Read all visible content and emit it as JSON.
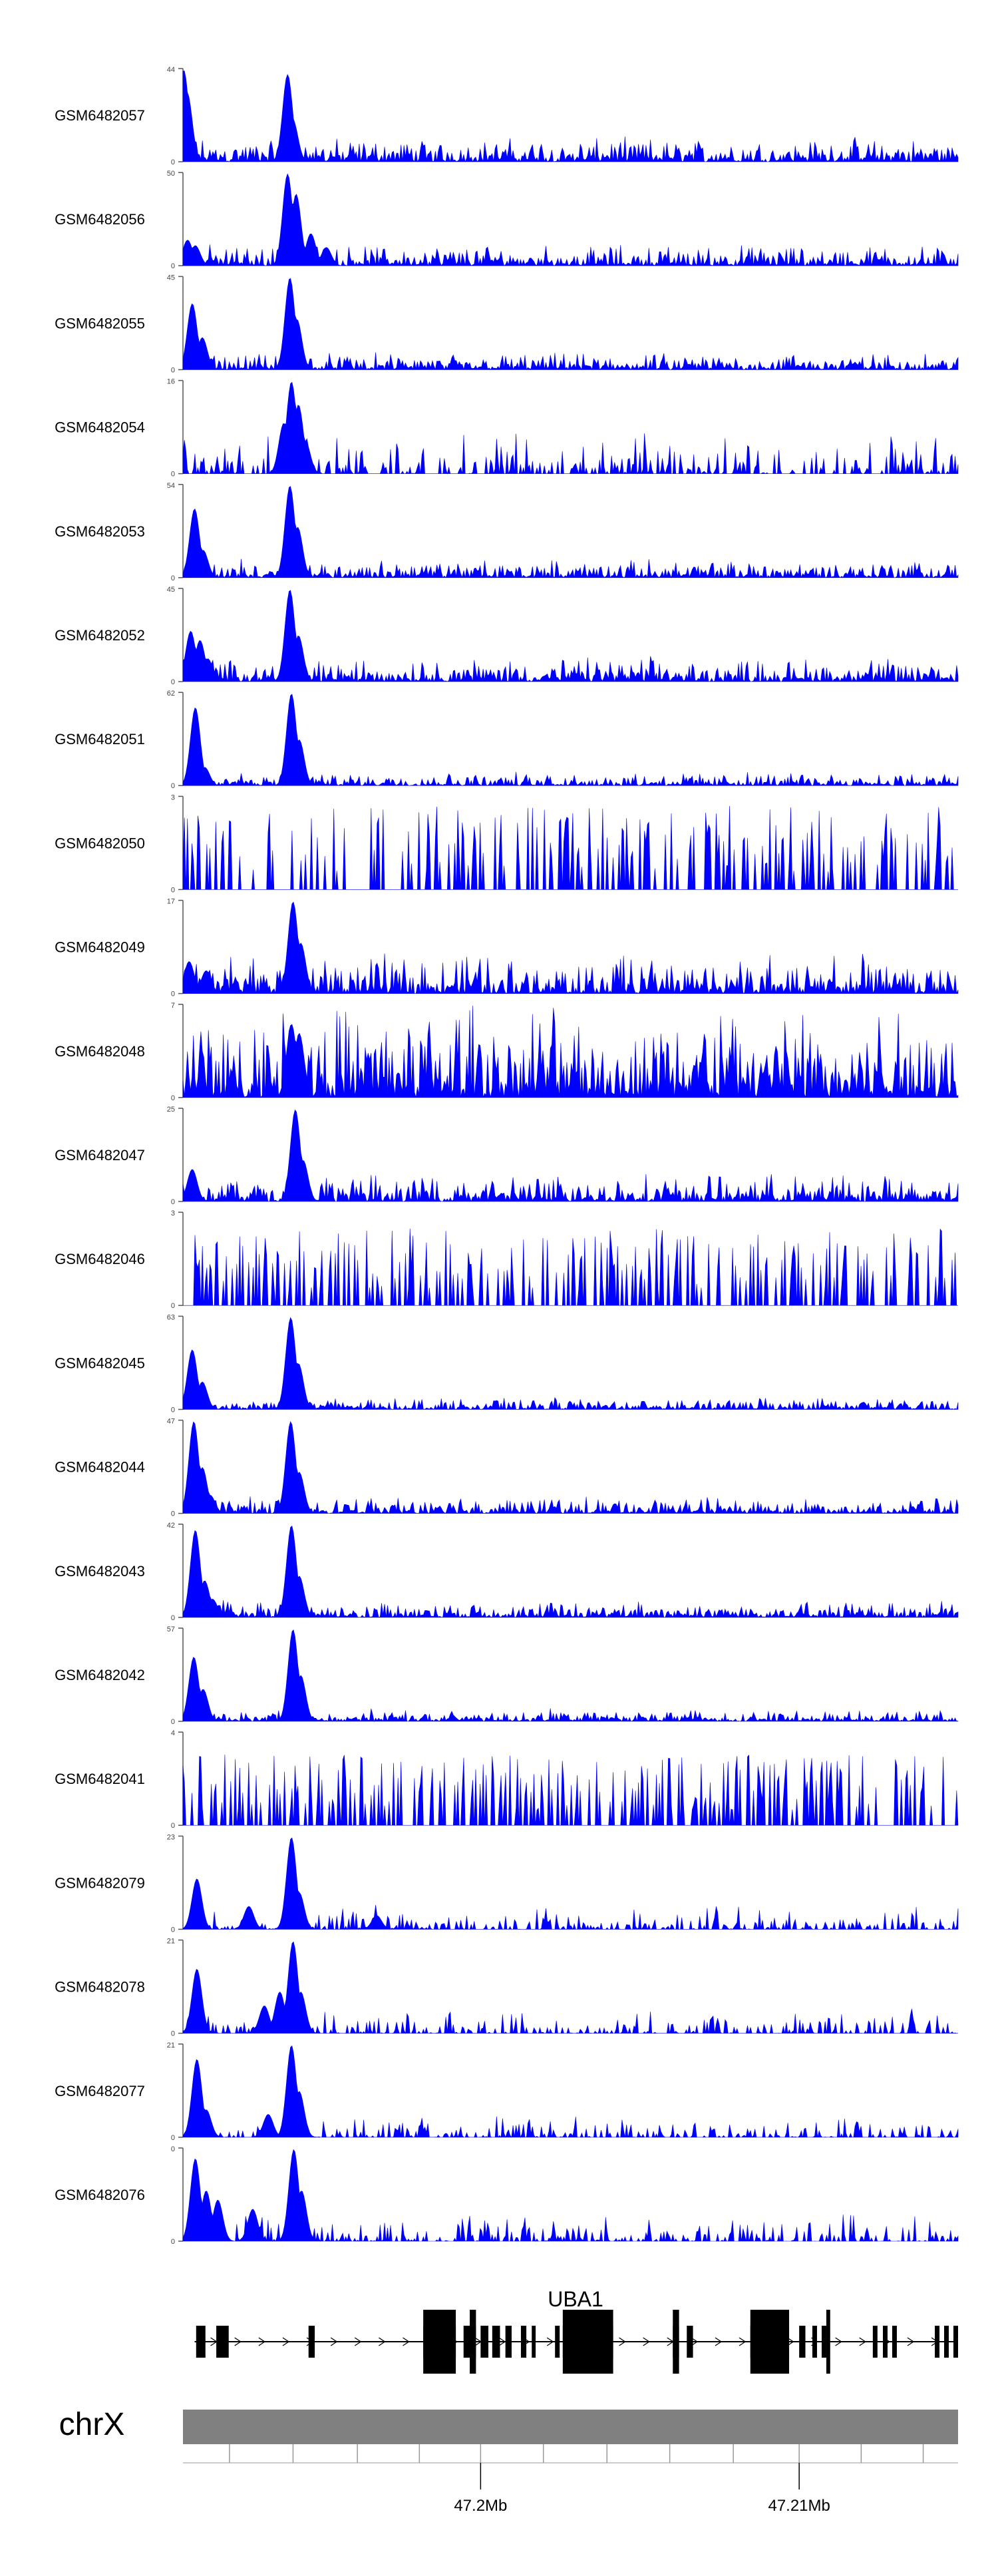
{
  "chart_data": {
    "type": "area",
    "title": "",
    "track_color": "#0000ff",
    "series": [
      {
        "name": "GSM6482057",
        "ymax": 44,
        "peaks": [
          [
            0.1,
            1.0
          ],
          [
            0.55,
            0.75
          ],
          [
            0.85,
            0.35
          ],
          [
            1.1,
            0.12
          ],
          [
            13.5,
            0.95
          ],
          [
            14.2,
            0.45
          ]
        ],
        "noise": 0.16,
        "sparse": 0
      },
      {
        "name": "GSM6482056",
        "ymax": 50,
        "peaks": [
          [
            0.6,
            0.28
          ],
          [
            1.6,
            0.22
          ],
          [
            13.5,
            1.0
          ],
          [
            14.6,
            0.78
          ],
          [
            16.5,
            0.35
          ],
          [
            18.5,
            0.2
          ]
        ],
        "noise": 0.14,
        "sparse": 0
      },
      {
        "name": "GSM6482055",
        "ymax": 45,
        "peaks": [
          [
            1.2,
            0.72
          ],
          [
            2.5,
            0.35
          ],
          [
            13.8,
            1.0
          ],
          [
            14.7,
            0.55
          ]
        ],
        "noise": 0.11,
        "sparse": 0
      },
      {
        "name": "GSM6482054",
        "ymax": 16,
        "peaks": [
          [
            13.0,
            0.55
          ],
          [
            14.0,
            1.0
          ],
          [
            14.9,
            0.75
          ],
          [
            15.8,
            0.35
          ]
        ],
        "noise": 0.3,
        "sparse": 1
      },
      {
        "name": "GSM6482053",
        "ymax": 54,
        "peaks": [
          [
            1.5,
            0.75
          ],
          [
            2.6,
            0.3
          ],
          [
            13.8,
            1.0
          ],
          [
            14.8,
            0.55
          ]
        ],
        "noise": 0.12,
        "sparse": 0
      },
      {
        "name": "GSM6482052",
        "ymax": 45,
        "peaks": [
          [
            1.0,
            0.55
          ],
          [
            2.2,
            0.45
          ],
          [
            3.2,
            0.25
          ],
          [
            13.8,
            1.0
          ],
          [
            14.9,
            0.5
          ]
        ],
        "noise": 0.16,
        "sparse": 0
      },
      {
        "name": "GSM6482051",
        "ymax": 62,
        "peaks": [
          [
            1.6,
            0.85
          ],
          [
            2.8,
            0.2
          ],
          [
            14.0,
            1.0
          ],
          [
            15.0,
            0.5
          ]
        ],
        "noise": 0.09,
        "sparse": 0
      },
      {
        "name": "GSM6482050",
        "ymax": 3,
        "peaks": [],
        "noise": 0.65,
        "sparse": 2
      },
      {
        "name": "GSM6482049",
        "ymax": 17,
        "peaks": [
          [
            0.8,
            0.35
          ],
          [
            3.0,
            0.25
          ],
          [
            14.2,
            1.0
          ],
          [
            15.2,
            0.55
          ]
        ],
        "noise": 0.26,
        "sparse": 0
      },
      {
        "name": "GSM6482048",
        "ymax": 7,
        "peaks": [
          [
            14.0,
            0.8
          ],
          [
            15.0,
            0.7
          ]
        ],
        "noise": 0.62,
        "sparse": 0
      },
      {
        "name": "GSM6482047",
        "ymax": 25,
        "peaks": [
          [
            1.2,
            0.35
          ],
          [
            14.5,
            1.0
          ],
          [
            15.5,
            0.45
          ]
        ],
        "noise": 0.18,
        "sparse": 0
      },
      {
        "name": "GSM6482046",
        "ymax": 3,
        "peaks": [],
        "noise": 0.6,
        "sparse": 2
      },
      {
        "name": "GSM6482045",
        "ymax": 63,
        "peaks": [
          [
            1.2,
            0.65
          ],
          [
            2.5,
            0.3
          ],
          [
            13.9,
            1.0
          ],
          [
            14.9,
            0.5
          ]
        ],
        "noise": 0.08,
        "sparse": 0
      },
      {
        "name": "GSM6482044",
        "ymax": 47,
        "peaks": [
          [
            1.4,
            1.0
          ],
          [
            2.5,
            0.5
          ],
          [
            3.5,
            0.2
          ],
          [
            13.9,
            1.0
          ],
          [
            15.0,
            0.45
          ]
        ],
        "noise": 0.11,
        "sparse": 0
      },
      {
        "name": "GSM6482043",
        "ymax": 42,
        "peaks": [
          [
            1.6,
            0.95
          ],
          [
            2.8,
            0.4
          ],
          [
            3.8,
            0.2
          ],
          [
            14.0,
            1.0
          ],
          [
            15.0,
            0.45
          ]
        ],
        "noise": 0.11,
        "sparse": 0
      },
      {
        "name": "GSM6482042",
        "ymax": 57,
        "peaks": [
          [
            1.4,
            0.7
          ],
          [
            2.6,
            0.35
          ],
          [
            14.2,
            1.0
          ],
          [
            15.2,
            0.5
          ]
        ],
        "noise": 0.08,
        "sparse": 0
      },
      {
        "name": "GSM6482041",
        "ymax": 4,
        "peaks": [],
        "noise": 0.55,
        "sparse": 2
      },
      {
        "name": "GSM6482079",
        "ymax": 23,
        "peaks": [
          [
            1.8,
            0.55
          ],
          [
            8.5,
            0.25
          ],
          [
            14.0,
            1.0
          ],
          [
            15.0,
            0.4
          ],
          [
            25,
            0.15
          ]
        ],
        "noise": 0.17,
        "sparse": 1
      },
      {
        "name": "GSM6482078",
        "ymax": 21,
        "peaks": [
          [
            1.8,
            0.7
          ],
          [
            10.5,
            0.3
          ],
          [
            12.5,
            0.45
          ],
          [
            14.2,
            1.0
          ],
          [
            15.2,
            0.45
          ]
        ],
        "noise": 0.17,
        "sparse": 1
      },
      {
        "name": "GSM6482077",
        "ymax": 21,
        "peaks": [
          [
            1.8,
            0.85
          ],
          [
            3.0,
            0.3
          ],
          [
            11.0,
            0.25
          ],
          [
            14.0,
            1.0
          ],
          [
            15.0,
            0.5
          ]
        ],
        "noise": 0.15,
        "sparse": 1
      },
      {
        "name": "GSM6482076",
        "ymax": 0,
        "peaks": [
          [
            1.6,
            0.9
          ],
          [
            3.0,
            0.55
          ],
          [
            4.5,
            0.45
          ],
          [
            9.0,
            0.35
          ],
          [
            14.3,
            1.0
          ],
          [
            15.3,
            0.55
          ]
        ],
        "noise": 0.2,
        "sparse": 1
      }
    ],
    "gene": {
      "name": "UBA1",
      "exons": [
        [
          1.7,
          2.9
        ],
        [
          4.3,
          5.9
        ],
        [
          16.2,
          17.0
        ],
        [
          31.0,
          35.2
        ],
        [
          36.2,
          37.8
        ],
        [
          38.4,
          39.4
        ],
        [
          39.9,
          40.9
        ],
        [
          41.6,
          42.4
        ],
        [
          43.6,
          44.3
        ],
        [
          45.0,
          45.5
        ],
        [
          48.0,
          48.6
        ],
        [
          49.0,
          49.5
        ],
        [
          50.5,
          51.0
        ],
        [
          51.3,
          51.8
        ],
        [
          52.5,
          53.0
        ],
        [
          53.3,
          53.8
        ],
        [
          54.2,
          54.7
        ],
        [
          55.0,
          55.5
        ],
        [
          63.2,
          64.0
        ],
        [
          65.0,
          65.8
        ],
        [
          73.2,
          76.6
        ],
        [
          77.0,
          78.2
        ],
        [
          79.5,
          80.3
        ],
        [
          81.2,
          81.8
        ],
        [
          82.4,
          83.0
        ],
        [
          89.0,
          89.6
        ],
        [
          90.3,
          90.9
        ],
        [
          91.5,
          92.1
        ],
        [
          97.0,
          97.6
        ],
        [
          98.2,
          98.8
        ],
        [
          99.4,
          100.0
        ]
      ],
      "tall_exons": [
        [
          31.0,
          35.2
        ],
        [
          37.0,
          37.8
        ],
        [
          49.0,
          55.5
        ],
        [
          63.2,
          64.0
        ],
        [
          73.2,
          78.2
        ],
        [
          83.0,
          83.5
        ]
      ]
    },
    "ideogram": {
      "chromosome": "chrX",
      "ticks": [
        {
          "label": "47.2Mb",
          "pos": 38.4
        },
        {
          "label": "47.21Mb",
          "pos": 79.5
        }
      ],
      "minor_ticks": [
        6.0,
        14.2,
        22.5,
        30.5,
        38.4,
        46.5,
        54.7,
        62.8,
        71.0,
        79.5,
        87.5,
        95.5
      ]
    },
    "x_range": [
      0,
      100
    ]
  }
}
